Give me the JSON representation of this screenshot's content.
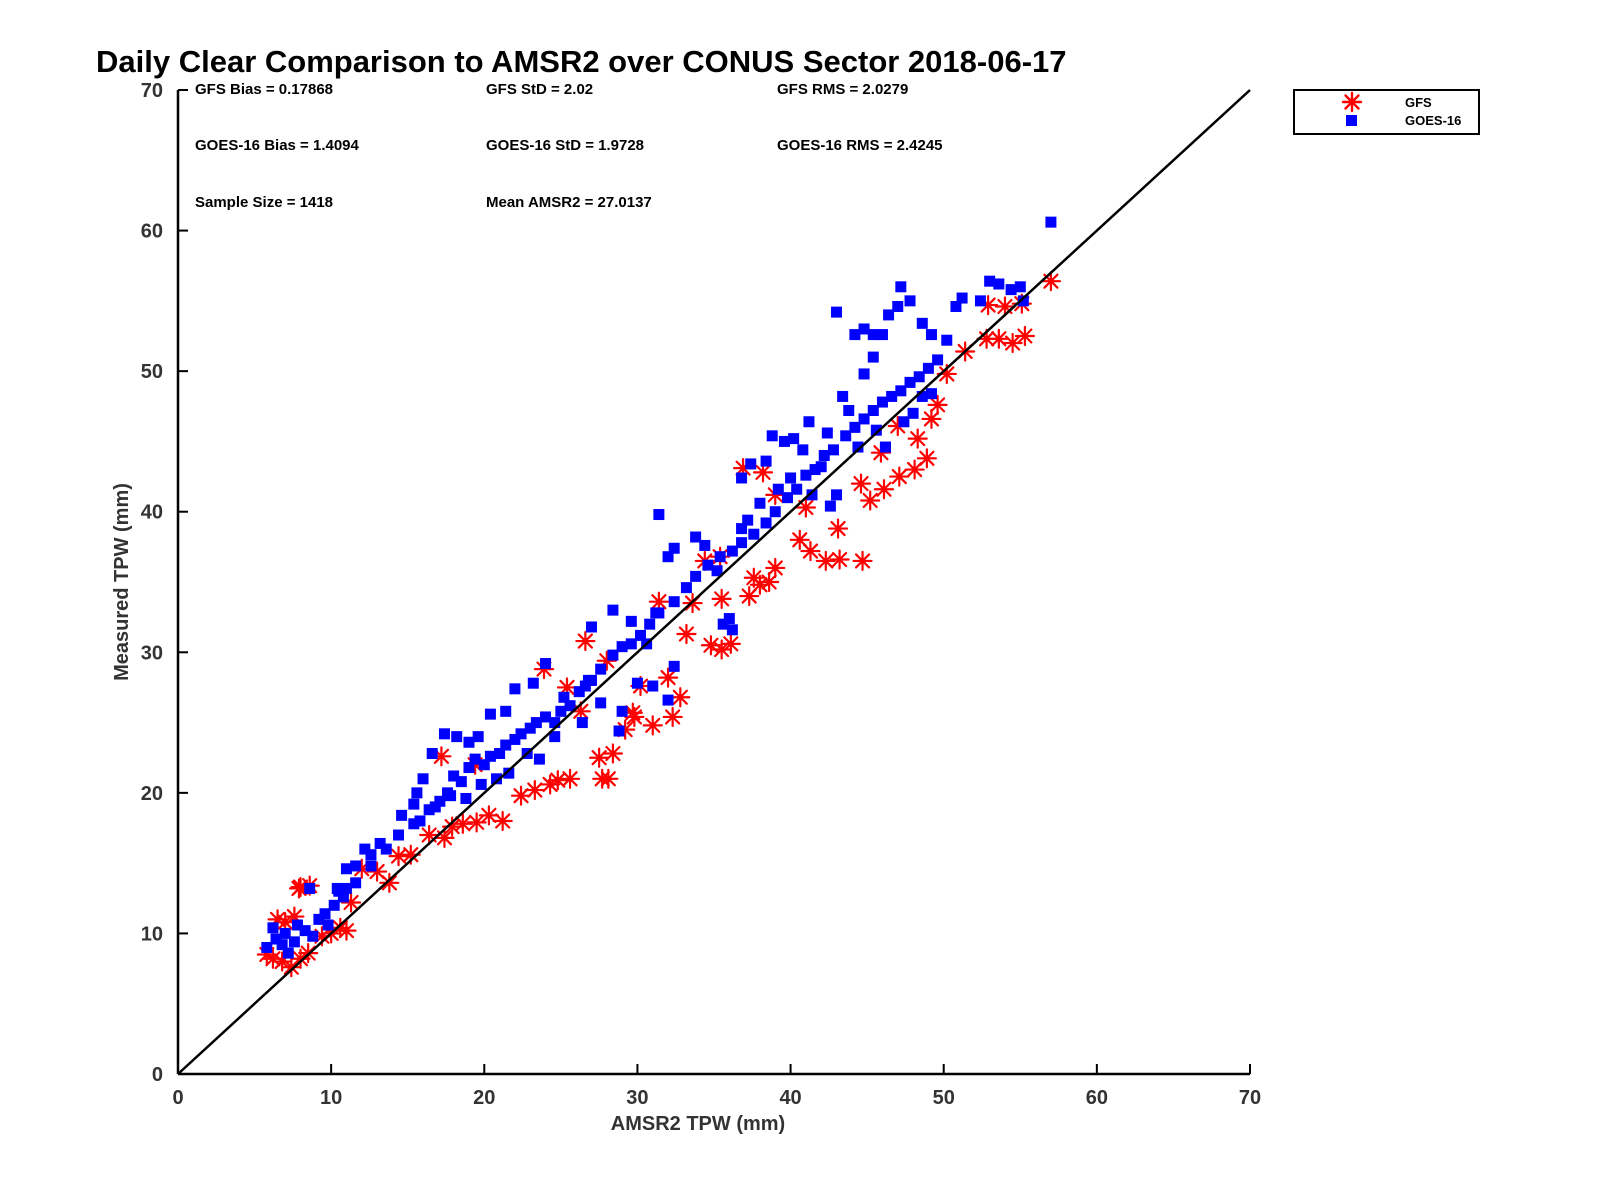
{
  "chart_data": {
    "type": "scatter",
    "title": "Daily Clear Comparison to AMSR2 over CONUS Sector 2018-06-17",
    "xlabel": "AMSR2 TPW (mm)",
    "ylabel": "Measured TPW (mm)",
    "xlim": [
      0,
      70
    ],
    "ylim": [
      0,
      70
    ],
    "xticks": [
      "0",
      "10",
      "20",
      "30",
      "40",
      "50",
      "60",
      "70"
    ],
    "yticks": [
      "0",
      "10",
      "20",
      "30",
      "40",
      "50",
      "60",
      "70"
    ],
    "grid": false,
    "legend_position": "outside-top-right",
    "reference_line": {
      "from": [
        0,
        0
      ],
      "to": [
        70,
        70
      ],
      "color": "#000000"
    },
    "stats": [
      {
        "text": "GFS Bias = 0.17868",
        "row": 0,
        "col": 0
      },
      {
        "text": "GFS StD = 2.02",
        "row": 0,
        "col": 1
      },
      {
        "text": "GFS RMS = 2.0279",
        "row": 0,
        "col": 2
      },
      {
        "text": "GOES-16 Bias = 1.4094",
        "row": 1,
        "col": 0
      },
      {
        "text": "GOES-16 StD = 1.9728",
        "row": 1,
        "col": 1
      },
      {
        "text": "GOES-16 RMS = 2.4245",
        "row": 1,
        "col": 2
      },
      {
        "text": "Sample Size = 1418",
        "row": 2,
        "col": 0
      },
      {
        "text": "Mean AMSR2 = 27.0137",
        "row": 2,
        "col": 1
      }
    ],
    "series": [
      {
        "name": "GFS",
        "marker": "asterisk",
        "color": "#ff0000",
        "points": [
          [
            5.8,
            8.5
          ],
          [
            6.2,
            8.2
          ],
          [
            6.8,
            8.0
          ],
          [
            7.4,
            7.6
          ],
          [
            8.0,
            8.2
          ],
          [
            8.5,
            8.6
          ],
          [
            7.0,
            10.8
          ],
          [
            6.5,
            11.0
          ],
          [
            7.6,
            11.2
          ],
          [
            8.0,
            13.3
          ],
          [
            8.6,
            13.4
          ],
          [
            7.9,
            13.2
          ],
          [
            9.4,
            9.8
          ],
          [
            10.0,
            10.0
          ],
          [
            10.6,
            10.4
          ],
          [
            11.0,
            10.2
          ],
          [
            11.3,
            12.2
          ],
          [
            12.0,
            14.6
          ],
          [
            13.0,
            14.4
          ],
          [
            13.8,
            13.6
          ],
          [
            14.4,
            15.5
          ],
          [
            15.2,
            15.6
          ],
          [
            16.4,
            17.0
          ],
          [
            17.4,
            16.8
          ],
          [
            17.9,
            17.6
          ],
          [
            18.6,
            17.8
          ],
          [
            19.5,
            17.9
          ],
          [
            20.3,
            18.4
          ],
          [
            21.2,
            18.0
          ],
          [
            22.4,
            19.8
          ],
          [
            23.3,
            20.2
          ],
          [
            24.3,
            20.6
          ],
          [
            24.8,
            20.9
          ],
          [
            25.6,
            21.0
          ],
          [
            27.7,
            21.0
          ],
          [
            28.1,
            21.0
          ],
          [
            27.5,
            22.5
          ],
          [
            28.4,
            22.8
          ],
          [
            29.2,
            24.5
          ],
          [
            29.8,
            25.4
          ],
          [
            31.0,
            24.8
          ],
          [
            32.3,
            25.4
          ],
          [
            32.8,
            26.8
          ],
          [
            32.0,
            28.2
          ],
          [
            33.2,
            31.3
          ],
          [
            34.8,
            30.5
          ],
          [
            35.5,
            30.2
          ],
          [
            36.1,
            30.6
          ],
          [
            33.6,
            33.5
          ],
          [
            35.5,
            33.8
          ],
          [
            37.3,
            34.0
          ],
          [
            38.0,
            34.8
          ],
          [
            38.6,
            35.0
          ],
          [
            39.0,
            36.0
          ],
          [
            40.6,
            38.0
          ],
          [
            41.3,
            37.2
          ],
          [
            42.3,
            36.5
          ],
          [
            43.2,
            36.6
          ],
          [
            44.7,
            36.5
          ],
          [
            43.1,
            38.8
          ],
          [
            45.2,
            40.8
          ],
          [
            46.1,
            41.6
          ],
          [
            47.1,
            42.5
          ],
          [
            48.1,
            43.0
          ],
          [
            48.9,
            43.8
          ],
          [
            48.3,
            45.2
          ],
          [
            49.2,
            46.6
          ],
          [
            49.6,
            47.6
          ],
          [
            50.2,
            49.8
          ],
          [
            51.4,
            51.4
          ],
          [
            52.8,
            52.3
          ],
          [
            53.6,
            52.3
          ],
          [
            54.5,
            52.0
          ],
          [
            55.3,
            52.5
          ],
          [
            52.9,
            54.7
          ],
          [
            54.0,
            54.6
          ],
          [
            55.1,
            54.8
          ],
          [
            57.0,
            56.4
          ],
          [
            26.6,
            30.8
          ],
          [
            28.0,
            29.4
          ],
          [
            31.4,
            33.6
          ],
          [
            36.9,
            43.1
          ],
          [
            38.2,
            42.8
          ],
          [
            39.0,
            41.2
          ],
          [
            41.0,
            40.3
          ],
          [
            44.6,
            42.0
          ],
          [
            45.9,
            44.2
          ],
          [
            47.0,
            46.1
          ],
          [
            23.9,
            28.8
          ],
          [
            25.4,
            27.5
          ],
          [
            19.4,
            22.0
          ],
          [
            17.2,
            22.6
          ],
          [
            26.3,
            25.8
          ],
          [
            30.2,
            27.6
          ],
          [
            35.4,
            36.8
          ],
          [
            37.6,
            35.3
          ],
          [
            29.7,
            25.7
          ],
          [
            34.4,
            36.5
          ]
        ]
      },
      {
        "name": "GOES-16",
        "marker": "square",
        "color": "#0000ff",
        "points": [
          [
            5.8,
            9.0
          ],
          [
            6.4,
            9.6
          ],
          [
            7.0,
            10.0
          ],
          [
            7.8,
            10.6
          ],
          [
            8.3,
            10.2
          ],
          [
            9.2,
            11.0
          ],
          [
            9.6,
            11.4
          ],
          [
            10.2,
            12.0
          ],
          [
            10.8,
            12.6
          ],
          [
            10.5,
            13.0
          ],
          [
            8.6,
            13.2
          ],
          [
            11.0,
            13.2
          ],
          [
            11.6,
            14.8
          ],
          [
            12.6,
            15.6
          ],
          [
            13.6,
            16.0
          ],
          [
            14.4,
            17.0
          ],
          [
            15.4,
            17.8
          ],
          [
            15.6,
            20.0
          ],
          [
            16.4,
            18.8
          ],
          [
            17.1,
            19.4
          ],
          [
            17.6,
            20.0
          ],
          [
            18.0,
            21.2
          ],
          [
            18.5,
            20.8
          ],
          [
            19.0,
            21.8
          ],
          [
            19.4,
            22.4
          ],
          [
            20.0,
            22.0
          ],
          [
            20.4,
            22.6
          ],
          [
            21.0,
            22.8
          ],
          [
            21.4,
            23.4
          ],
          [
            22.0,
            23.8
          ],
          [
            22.4,
            24.2
          ],
          [
            23.0,
            24.6
          ],
          [
            23.4,
            25.0
          ],
          [
            24.0,
            25.4
          ],
          [
            24.6,
            25.0
          ],
          [
            25.0,
            25.8
          ],
          [
            25.6,
            26.2
          ],
          [
            26.2,
            27.2
          ],
          [
            26.6,
            27.6
          ],
          [
            27.0,
            28.0
          ],
          [
            27.6,
            28.8
          ],
          [
            28.4,
            29.8
          ],
          [
            29.0,
            30.4
          ],
          [
            29.6,
            30.6
          ],
          [
            30.2,
            31.2
          ],
          [
            30.8,
            32.0
          ],
          [
            31.4,
            32.8
          ],
          [
            32.4,
            33.6
          ],
          [
            33.2,
            34.6
          ],
          [
            33.8,
            35.4
          ],
          [
            34.6,
            36.2
          ],
          [
            35.4,
            36.8
          ],
          [
            36.2,
            37.2
          ],
          [
            36.8,
            37.8
          ],
          [
            37.6,
            38.4
          ],
          [
            38.4,
            39.2
          ],
          [
            39.0,
            40.0
          ],
          [
            39.8,
            41.0
          ],
          [
            40.4,
            41.6
          ],
          [
            41.0,
            42.6
          ],
          [
            41.6,
            43.0
          ],
          [
            42.2,
            44.0
          ],
          [
            42.8,
            44.4
          ],
          [
            43.6,
            45.4
          ],
          [
            44.2,
            46.0
          ],
          [
            44.8,
            46.6
          ],
          [
            45.4,
            47.2
          ],
          [
            46.0,
            47.8
          ],
          [
            46.6,
            48.2
          ],
          [
            47.2,
            48.6
          ],
          [
            47.8,
            49.2
          ],
          [
            48.4,
            49.6
          ],
          [
            49.0,
            50.2
          ],
          [
            49.6,
            50.8
          ],
          [
            43.8,
            47.2
          ],
          [
            43.4,
            48.2
          ],
          [
            44.8,
            49.8
          ],
          [
            45.4,
            51.0
          ],
          [
            46.0,
            52.6
          ],
          [
            44.2,
            52.6
          ],
          [
            43.0,
            54.2
          ],
          [
            44.8,
            53.0
          ],
          [
            45.4,
            52.6
          ],
          [
            46.4,
            54.0
          ],
          [
            47.0,
            54.6
          ],
          [
            47.2,
            56.0
          ],
          [
            47.8,
            55.0
          ],
          [
            48.6,
            53.4
          ],
          [
            49.2,
            52.6
          ],
          [
            50.2,
            52.2
          ],
          [
            50.8,
            54.6
          ],
          [
            51.2,
            55.2
          ],
          [
            52.4,
            55.0
          ],
          [
            53.0,
            56.4
          ],
          [
            53.6,
            56.2
          ],
          [
            54.4,
            55.8
          ],
          [
            55.0,
            56.0
          ],
          [
            55.2,
            55.0
          ],
          [
            57.0,
            60.6
          ],
          [
            42.0,
            43.2
          ],
          [
            42.4,
            45.6
          ],
          [
            41.2,
            46.4
          ],
          [
            40.8,
            44.4
          ],
          [
            40.2,
            45.2
          ],
          [
            39.6,
            45.0
          ],
          [
            38.8,
            45.4
          ],
          [
            38.4,
            43.6
          ],
          [
            37.4,
            43.4
          ],
          [
            36.8,
            42.4
          ],
          [
            31.4,
            39.8
          ],
          [
            32.0,
            36.8
          ],
          [
            32.4,
            37.4
          ],
          [
            33.8,
            38.2
          ],
          [
            34.4,
            37.6
          ],
          [
            35.2,
            35.8
          ],
          [
            35.6,
            32.0
          ],
          [
            36.2,
            31.6
          ],
          [
            36.0,
            32.4
          ],
          [
            31.2,
            32.8
          ],
          [
            30.6,
            30.6
          ],
          [
            29.6,
            32.2
          ],
          [
            28.4,
            33.0
          ],
          [
            27.0,
            31.8
          ],
          [
            26.8,
            28.0
          ],
          [
            25.2,
            26.8
          ],
          [
            24.0,
            29.2
          ],
          [
            23.2,
            27.8
          ],
          [
            22.0,
            27.4
          ],
          [
            21.4,
            25.8
          ],
          [
            20.4,
            25.6
          ],
          [
            19.6,
            24.0
          ],
          [
            19.0,
            23.6
          ],
          [
            18.2,
            24.0
          ],
          [
            17.4,
            24.2
          ],
          [
            16.6,
            22.8
          ],
          [
            16.0,
            21.0
          ],
          [
            15.4,
            19.2
          ],
          [
            14.6,
            18.4
          ],
          [
            13.2,
            16.4
          ],
          [
            12.2,
            16.0
          ],
          [
            11.0,
            14.6
          ],
          [
            10.4,
            13.2
          ],
          [
            32.0,
            26.6
          ],
          [
            32.4,
            29.0
          ],
          [
            31.0,
            27.6
          ],
          [
            30.0,
            27.8
          ],
          [
            29.0,
            25.8
          ],
          [
            27.6,
            26.4
          ],
          [
            28.8,
            24.4
          ],
          [
            26.4,
            25.0
          ],
          [
            24.6,
            24.0
          ],
          [
            23.6,
            22.4
          ],
          [
            22.8,
            22.8
          ],
          [
            21.6,
            21.4
          ],
          [
            20.8,
            21.0
          ],
          [
            19.8,
            20.6
          ],
          [
            18.8,
            19.6
          ],
          [
            17.8,
            19.8
          ],
          [
            16.8,
            19.0
          ],
          [
            15.8,
            18.0
          ],
          [
            36.8,
            38.8
          ],
          [
            37.2,
            39.4
          ],
          [
            38.0,
            40.6
          ],
          [
            39.2,
            41.6
          ],
          [
            40.0,
            42.4
          ],
          [
            41.4,
            41.2
          ],
          [
            42.6,
            40.4
          ],
          [
            43.0,
            41.2
          ],
          [
            44.4,
            44.6
          ],
          [
            45.6,
            45.8
          ],
          [
            46.2,
            44.6
          ],
          [
            47.4,
            46.4
          ],
          [
            48.0,
            47.0
          ],
          [
            48.6,
            48.2
          ],
          [
            49.2,
            48.4
          ],
          [
            7.2,
            8.6
          ],
          [
            6.8,
            9.2
          ],
          [
            8.8,
            9.8
          ],
          [
            9.8,
            10.6
          ],
          [
            6.2,
            10.4
          ],
          [
            7.6,
            9.4
          ],
          [
            11.6,
            13.6
          ],
          [
            12.6,
            14.8
          ]
        ]
      }
    ]
  }
}
